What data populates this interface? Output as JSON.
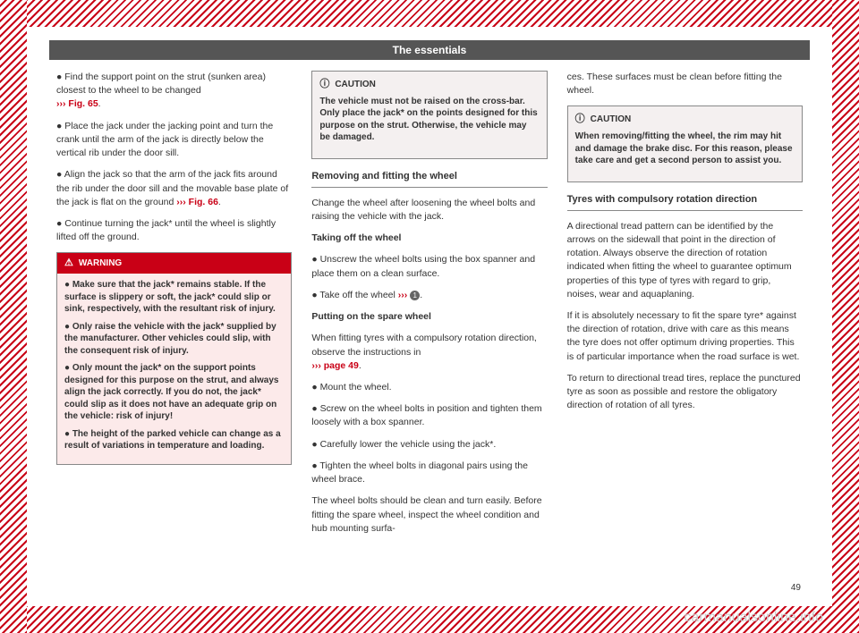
{
  "watermark": "carmanualsonline.info",
  "header": "The essentials",
  "page_number": "49",
  "col1": {
    "p1_a": "Find the support point on the strut (sunken area) closest to the wheel to be changed",
    "p1_link": "››› Fig. 65",
    "p1_b": ".",
    "p2": "Place the jack under the jacking point and turn the crank until the arm of the jack is directly below the vertical rib under the door sill.",
    "p3_a": "Align the jack so that the arm of the jack fits around the rib under the door sill and the movable base plate of the jack is flat on the ground ",
    "p3_link": "››› Fig. 66",
    "p3_b": ".",
    "p4": "Continue turning the jack* until the wheel is slightly lifted off the ground.",
    "warning": {
      "title": "WARNING",
      "b1": "Make sure that the jack* remains stable. If the surface is slippery or soft, the jack* could slip or sink, respectively, with the resultant risk of injury.",
      "b2": "Only raise the vehicle with the jack* supplied by the manufacturer. Other vehicles could slip, with the consequent risk of injury.",
      "b3": "Only mount the jack* on the support points designed for this purpose on the strut, and always align the jack correctly. If you do not, the jack* could slip as it does not have an adequate grip on the vehicle: risk of injury!",
      "b4": "The height of the parked vehicle can change as a result of variations in temperature and loading."
    }
  },
  "col2": {
    "caution": {
      "title": "CAUTION",
      "text": "The vehicle must not be raised on the cross-bar. Only place the jack* on the points designed for this purpose on the strut. Otherwise, the vehicle may be damaged."
    },
    "heading1": "Removing and fitting the wheel",
    "p1": "Change the wheel after loosening the wheel bolts and raising the vehicle with the jack.",
    "sub1": "Taking off the wheel",
    "b1": "Unscrew the wheel bolts using the box spanner and place them on a clean surface.",
    "b2_a": "Take off the wheel ",
    "b2_link": "›››",
    "b2_b": ".",
    "sub2": "Putting on the spare wheel",
    "p2_a": "When fitting tyres with a compulsory rotation direction, observe the instructions in",
    "p2_link": "››› page 49",
    "p2_b": ".",
    "b3": "Mount the wheel.",
    "b4": "Screw on the wheel bolts in position and tighten them loosely with a box spanner.",
    "b5": "Carefully lower the vehicle using the jack*.",
    "b6": "Tighten the wheel bolts in diagonal pairs using the wheel brace.",
    "p3": "The wheel bolts should be clean and turn easily. Before fitting the spare wheel, inspect the wheel condition and hub mounting surfa-"
  },
  "col3": {
    "p1": "ces. These surfaces must be clean before fitting the wheel.",
    "caution": {
      "title": "CAUTION",
      "text": "When removing/fitting the wheel, the rim may hit and damage the brake disc. For this reason, please take care and get a second person to assist you."
    },
    "heading1": "Tyres with compulsory rotation direction",
    "p2": "A directional tread pattern can be identified by the arrows on the sidewall that point in the direction of rotation. Always observe the direction of rotation indicated when fitting the wheel to guarantee optimum properties of this type of tyres with regard to grip, noises, wear and aquaplaning.",
    "p3": "If it is absolutely necessary to fit the spare tyre* against the direction of rotation, drive with care as this means the tyre does not offer optimum driving properties. This is of particular importance when the road surface is wet.",
    "p4": "To return to directional tread tires, replace the punctured tyre as soon as possible and restore the obligatory direction of rotation of all tyres."
  }
}
